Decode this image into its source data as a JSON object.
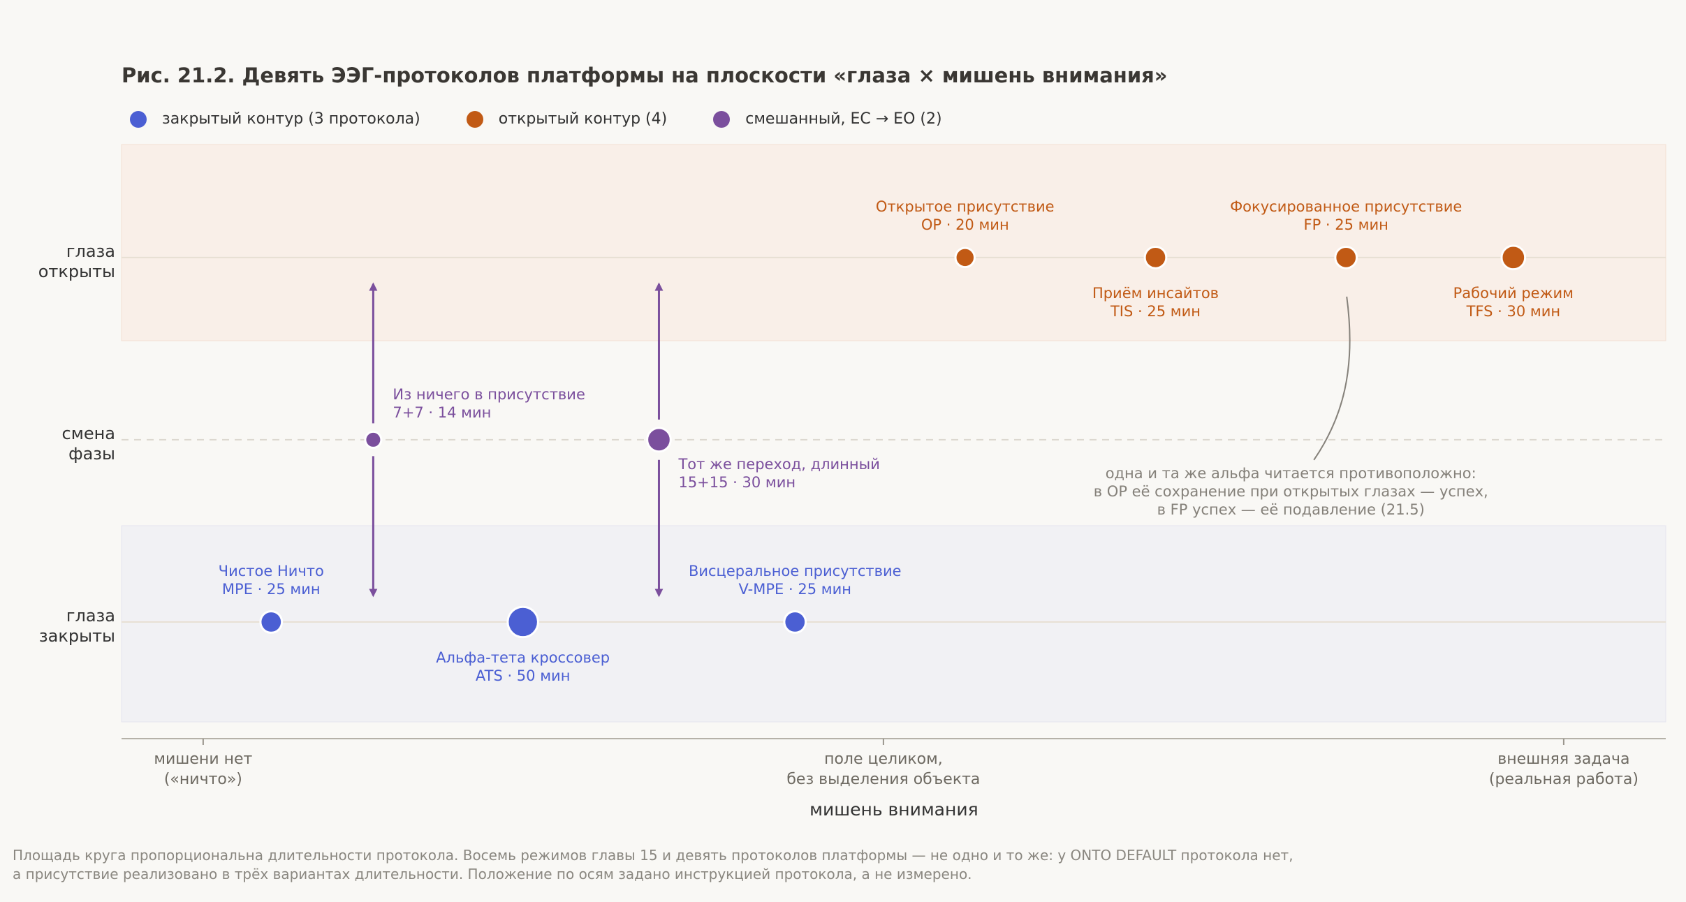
{
  "chart_data": {
    "type": "scatter",
    "title": "Рис. 21.2. Девять ЭЭГ-протоколов платформы на плоскости «глаза × мишень внимания»",
    "xlabel": "мишень внимания",
    "x_ticks": [
      {
        "x": 0,
        "label": [
          "мишени нет",
          "(«ничто»)"
        ]
      },
      {
        "x": 0.5,
        "label": [
          "поле целиком,",
          "без выделения объекта"
        ]
      },
      {
        "x": 1,
        "label": [
          "внешняя задача",
          "(реальная работа)"
        ]
      }
    ],
    "y_ticks": [
      {
        "y": 1,
        "label": [
          "глаза",
          "открыты"
        ]
      },
      {
        "y": 0.5,
        "label": [
          "смена",
          "фазы"
        ]
      },
      {
        "y": 0,
        "label": [
          "глаза",
          "закрыты"
        ]
      }
    ],
    "xlim": [
      -0.06,
      1.075
    ],
    "ylim": [
      -0.32,
      1.31
    ],
    "legend_position": "top-left",
    "series": [
      {
        "name": "закрытый контур (3 протокола)",
        "color": "#4b5fd3"
      },
      {
        "name": "открытый контур (4)",
        "color": "#c15a15"
      },
      {
        "name": "смешанный, EC → EO (2)",
        "color": "#7b4f9d"
      }
    ],
    "points": [
      {
        "series": 0,
        "x": 0.05,
        "y": 0,
        "minutes": 25,
        "label": [
          "Чистое Ничто",
          "MPE · 25 мин"
        ],
        "pos": "above"
      },
      {
        "series": 0,
        "x": 0.235,
        "y": 0,
        "minutes": 50,
        "label": [
          "Альфа-тета кроссовер",
          "ATS · 50 мин"
        ],
        "pos": "below"
      },
      {
        "series": 0,
        "x": 0.435,
        "y": 0,
        "minutes": 25,
        "label": [
          "Висцеральное присутствие",
          "V-MPE · 25 мин"
        ],
        "pos": "above"
      },
      {
        "series": 1,
        "x": 0.56,
        "y": 1,
        "minutes": 20,
        "label": [
          "Открытое присутствие",
          "OP · 20 мин"
        ],
        "pos": "above"
      },
      {
        "series": 1,
        "x": 0.7,
        "y": 1,
        "minutes": 25,
        "label": [
          "Приём инсайтов",
          "TIS · 25 мин"
        ],
        "pos": "below"
      },
      {
        "series": 1,
        "x": 0.84,
        "y": 1,
        "minutes": 25,
        "label": [
          "Фокусированное присутствие",
          "FP · 25 мин"
        ],
        "pos": "above"
      },
      {
        "series": 1,
        "x": 0.963,
        "y": 1,
        "minutes": 30,
        "label": [
          "Рабочий режим",
          "TFS · 30 мин"
        ],
        "pos": "below"
      },
      {
        "series": 2,
        "x": 0.125,
        "y": 0.5,
        "minutes": 14,
        "label": [
          "Из ничего в присутствие",
          "7+7 · 14 мин"
        ],
        "pos": "upper-right"
      },
      {
        "series": 2,
        "x": 0.335,
        "y": 0.5,
        "minutes": 30,
        "label": [
          "Тот же переход, длинный",
          "15+15 · 30 мин"
        ],
        "pos": "lower-right"
      }
    ],
    "annotation": {
      "text": [
        "одна и та же альфа читается противоположно:",
        "в OP её сохранение при открытых глазах — успех,",
        "в FP успех — её подавление (21.5)"
      ],
      "points_to": "FP"
    }
  },
  "caption": [
    "Площадь круга пропорциональна длительности протокола. Восемь режимов главы 15 и девять протоколов платформы — не одно и то же: у ONTO DEFAULT протокола нет,",
    "а присутствие реализовано в трёх вариантах длительности. Положение по осям задано инструкцией протокола, а не измерено."
  ]
}
